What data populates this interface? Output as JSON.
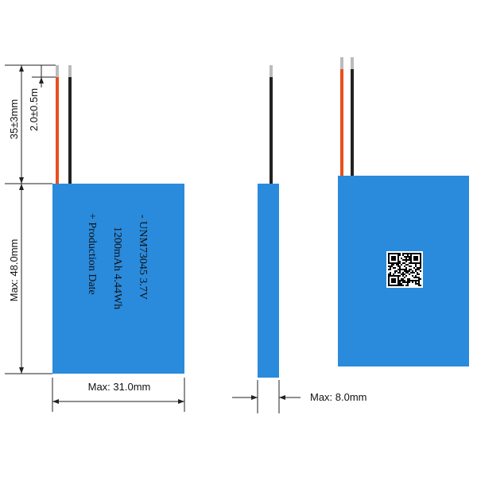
{
  "dimensions": {
    "lead_length": "35±3mm",
    "lead_tip": "2.0±0.5m",
    "height": "Max: 48.0mm",
    "width": "Max: 31.0mm",
    "thickness": "Max: 8.0mm"
  },
  "label": {
    "lines": [
      "- UNM73045 3.7V",
      "1200mAh 4.44Wh",
      "+ Production Date"
    ]
  }
}
